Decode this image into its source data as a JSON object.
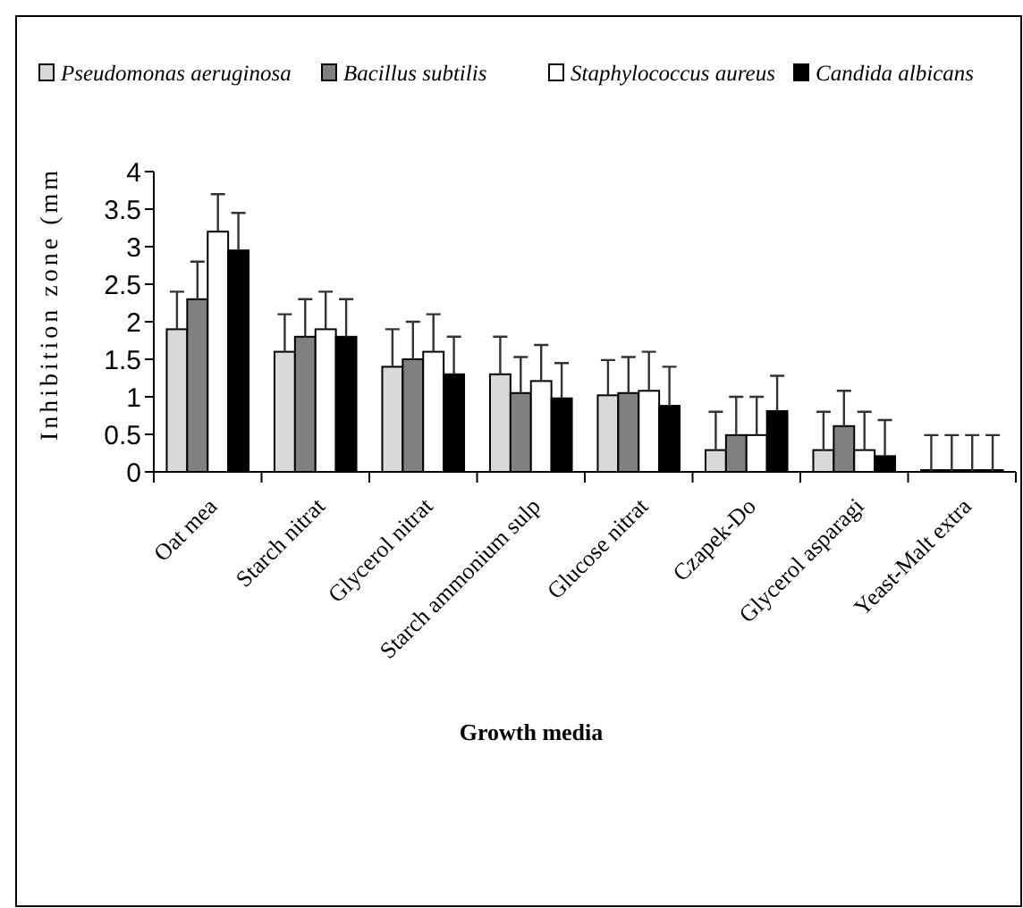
{
  "chart_data": {
    "type": "bar",
    "xlabel": "Growth media",
    "ylabel": "Inhibition zone (mm",
    "categories": [
      "Oat mea",
      "Starch nitrat",
      "Glycerol nitrat",
      "Starch ammonium sulp",
      "Glucose nitrat",
      "Czapek-Do",
      "Glycerol asparagi",
      "Yeast-Malt extra"
    ],
    "series": [
      {
        "name": "Pseudomonas aeruginosa",
        "color": "#d9d9d9",
        "values": [
          1.9,
          1.6,
          1.4,
          1.3,
          1.02,
          0.29,
          0.29,
          0
        ],
        "errors": [
          0.5,
          0.5,
          0.5,
          0.5,
          0.47,
          0.51,
          0.51,
          0.49
        ]
      },
      {
        "name": "Bacillus subtilis",
        "color": "#808080",
        "values": [
          2.3,
          1.8,
          1.5,
          1.05,
          1.05,
          0.49,
          0.61,
          0
        ],
        "errors": [
          0.5,
          0.5,
          0.5,
          0.48,
          0.48,
          0.51,
          0.47,
          0.49
        ]
      },
      {
        "name": "Staphylococcus aureus",
        "color": "#ffffff",
        "values": [
          3.2,
          1.9,
          1.6,
          1.21,
          1.08,
          0.49,
          0.29,
          0
        ],
        "errors": [
          0.5,
          0.5,
          0.5,
          0.48,
          0.52,
          0.51,
          0.51,
          0.49
        ]
      },
      {
        "name": "Candida albicans",
        "color": "#000000",
        "values": [
          2.95,
          1.8,
          1.3,
          0.98,
          0.88,
          0.81,
          0.21,
          0
        ],
        "errors": [
          0.5,
          0.5,
          0.5,
          0.47,
          0.52,
          0.47,
          0.48,
          0.49
        ]
      }
    ],
    "ylim": [
      0,
      4
    ],
    "yticks": [
      0,
      0.5,
      1,
      1.5,
      2,
      2.5,
      3,
      3.5,
      4
    ],
    "legend": "top",
    "grid": false
  }
}
